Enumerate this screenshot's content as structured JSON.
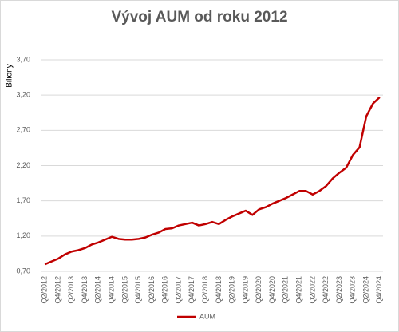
{
  "chart_data": {
    "type": "line",
    "title": "Vývoj AUM od roku 2012",
    "y_label": "Biliony",
    "categories": [
      "Q2/2012",
      null,
      "Q4/2012",
      null,
      "Q2/2013",
      null,
      "Q4/2013",
      null,
      "Q2/2014",
      null,
      "Q4/2014",
      null,
      "Q2/2015",
      null,
      "Q4/2015",
      null,
      "Q2/2016",
      null,
      "Q4/2016",
      null,
      "Q2/2017",
      null,
      "Q4/2017",
      null,
      "Q2/2018",
      null,
      "Q4/2018",
      null,
      "Q2/2019",
      null,
      "Q4/2019",
      null,
      "Q2/2020",
      null,
      "Q4/2020",
      null,
      "Q2/2021",
      null,
      "Q4/2021",
      null,
      "Q2/2022",
      null,
      "Q4/2022",
      null,
      "Q2/2023",
      null,
      "Q4/2023",
      null,
      "Q2/2024",
      null,
      "Q4/2024"
    ],
    "series": [
      {
        "name": "AUM",
        "color": "#c00000",
        "values": [
          0.8,
          0.84,
          0.88,
          0.94,
          0.98,
          1.0,
          1.03,
          1.08,
          1.11,
          1.15,
          1.19,
          1.16,
          1.15,
          1.15,
          1.16,
          1.18,
          1.22,
          1.25,
          1.3,
          1.31,
          1.35,
          1.37,
          1.39,
          1.35,
          1.37,
          1.4,
          1.37,
          1.43,
          1.48,
          1.52,
          1.56,
          1.5,
          1.58,
          1.61,
          1.66,
          1.7,
          1.74,
          1.79,
          1.84,
          1.84,
          1.79,
          1.84,
          1.91,
          2.02,
          2.1,
          2.17,
          2.35,
          2.46,
          2.9,
          3.08,
          3.17
        ]
      }
    ],
    "ylim": [
      0.7,
      3.7
    ],
    "yticks": [
      {
        "value": 0.7,
        "label": "0,70"
      },
      {
        "value": 1.2,
        "label": "1,20"
      },
      {
        "value": 1.7,
        "label": "1,70"
      },
      {
        "value": 2.2,
        "label": "2,20"
      },
      {
        "value": 2.7,
        "label": "2,70"
      },
      {
        "value": 3.2,
        "label": "3,20"
      },
      {
        "value": 3.7,
        "label": "3,70"
      }
    ],
    "grid": true,
    "legend": "bottom"
  }
}
